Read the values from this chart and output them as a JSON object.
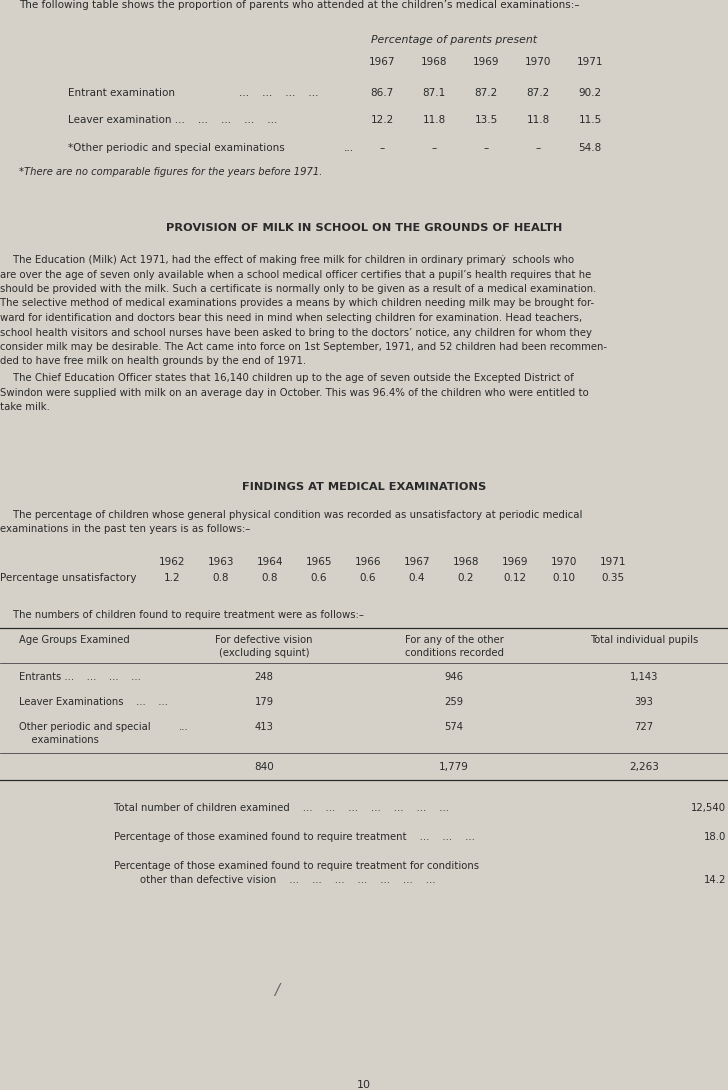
{
  "bg_color": "#d5d1c9",
  "text_color": "#2a2a2a",
  "page_number": "10",
  "intro_text": "The following table shows the proportion of parents who attended at the children’s medical examinations:–",
  "table1_header_italic": "Percentage of parents present",
  "table1_years": [
    "1967",
    "1968",
    "1969",
    "1970",
    "1971"
  ],
  "table1_row0_label": "Entrant examination",
  "table1_row0_dots": "...    ...    ...    ...",
  "table1_row0_vals": [
    "86.7",
    "87.1",
    "87.2",
    "87.2",
    "90.2"
  ],
  "table1_row1_label": "Leaver examination ...    ...    ...    ...    ...",
  "table1_row1_vals": [
    "12.2",
    "11.8",
    "13.5",
    "11.8",
    "11.5"
  ],
  "table1_row2_label": "*Other periodic and special examinations",
  "table1_row2_dots": "...",
  "table1_row2_vals": [
    "–",
    "–",
    "–",
    "–",
    "54.8"
  ],
  "table1_footnote": "*There are no comparable figures for the years before 1971.",
  "section1_title": "PROVISION OF MILK IN SCHOOL ON THE GROUNDS OF HEALTH",
  "section1_para1_lines": [
    "    The Education (Milk) Act 1971, had the effect of making free milk for children in ordinary primarẏ  schools who",
    "are over the age of seven only available when a school medical officer certifies that a pupil’s health requires that he",
    "should be provided with the milk. Such a certificate is normally only to be given as a result of a medical examination.",
    "The selective method of medical examinations provides a means by which children needing milk may be brought for-",
    "ward for identification and doctors bear this need in mind when selecting children for examination. Head teachers,",
    "school health visitors and school nurses have been asked to bring to the doctors’ notice, any children for whom they",
    "consider milk may be desirable. The Act came into force on 1st September, 1971, and 52 children had been recommen-",
    "ded to have free milk on health grounds by the end of 1971."
  ],
  "section1_para2_lines": [
    "    The Chief Education Officer states that 16,140 children up to the age of seven outside the Excepted District of",
    "Swindon were supplied with milk on an average day in October. This was 96.4% of the children who were entitled to",
    "take milk."
  ],
  "section2_title": "FINDINGS AT MEDICAL EXAMINATIONS",
  "section2_intro_lines": [
    "    The percentage of children whose general physical condition was recorded as unsatisfactory at periodic medical",
    "examinations in the past ten years is as follows:–"
  ],
  "table2_years": [
    "1962",
    "1963",
    "1964",
    "1965",
    "1966",
    "1967",
    "1968",
    "1969",
    "1970",
    "1971"
  ],
  "table2_label": "Percentage unsatisfactory",
  "table2_values": [
    "1.2",
    "0.8",
    "0.8",
    "0.6",
    "0.6",
    "0.4",
    "0.2",
    "0.12",
    "0.10",
    "0.35"
  ],
  "table3_intro": "    The numbers of children found to require treatment were as follows:–",
  "table3_col1": "Age Groups Examined",
  "table3_col2_line1": "For defective vision",
  "table3_col2_line2": "(excluding squint)",
  "table3_col3_line1": "For any of the other",
  "table3_col3_line2": "conditions recorded",
  "table3_col4": "Total individual pupils",
  "table3_row0_label1": "Entrants ...    ...    ...    ...",
  "table3_row0_col2": "248",
  "table3_row0_col3": "946",
  "table3_row0_col4": "1,143",
  "table3_row1_label1": "Leaver Examinations    ...    ...",
  "table3_row1_col2": "179",
  "table3_row1_col3": "259",
  "table3_row1_col4": "393",
  "table3_row2_label1": "Other periodic and special",
  "table3_row2_label2": "    examinations",
  "table3_row2_dots": "...",
  "table3_row2_col2": "413",
  "table3_row2_col3": "574",
  "table3_row2_col4": "727",
  "table3_totals": [
    "840",
    "1,779",
    "2,263"
  ],
  "sum1_text": "Total number of children examined    ...    ...    ...    ...    ...    ...    ...",
  "sum1_val": "12,540",
  "sum2_text": "Percentage of those examined found to require treatment    ...    ...    ...",
  "sum2_val": "18.0",
  "sum3_line1": "Percentage of those examined found to require treatment for conditions",
  "sum3_line2": "        other than defective vision    ...    ...    ...    ...    ...    ...    ...",
  "sum3_val": "14.2"
}
